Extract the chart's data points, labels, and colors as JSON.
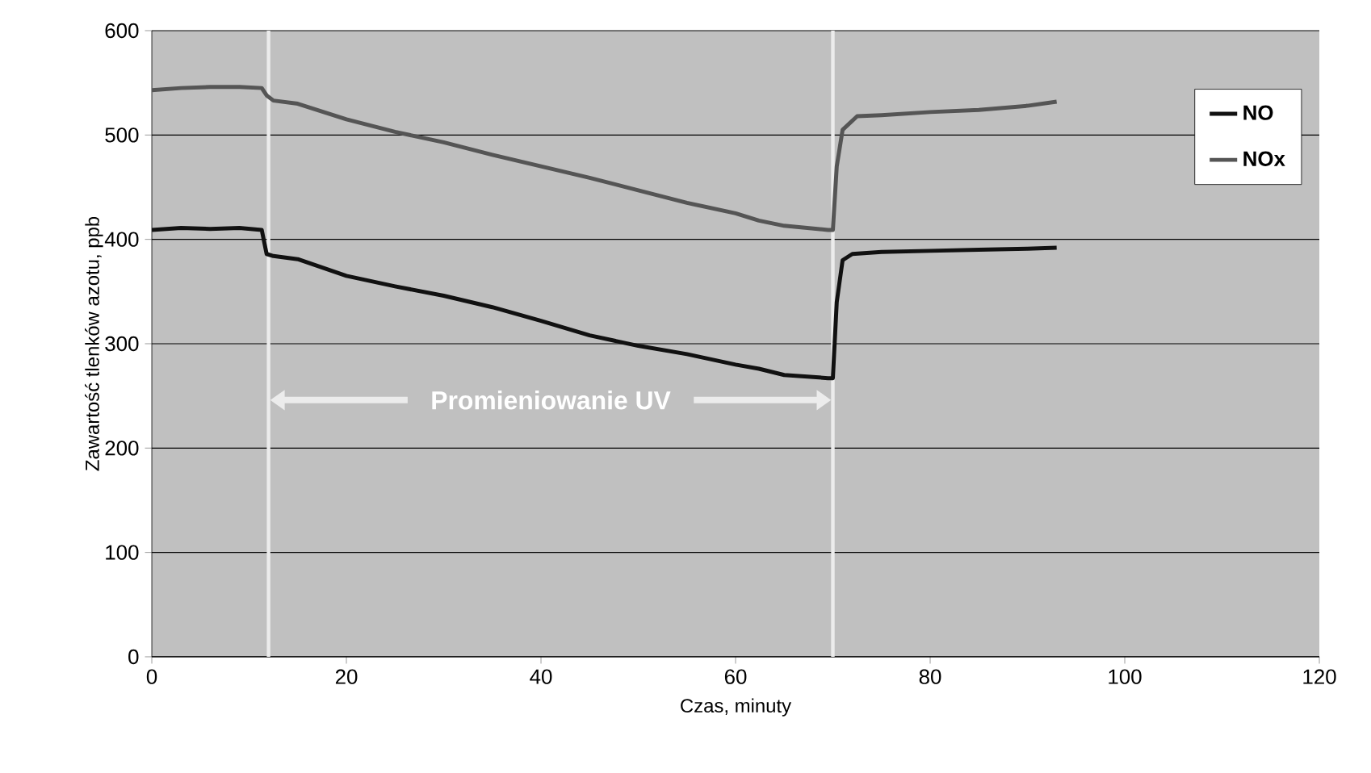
{
  "chart_data": {
    "type": "line",
    "xlabel": "Czas, minuty",
    "ylabel": "Zawartość tlenków azotu, ppb",
    "xlim": [
      0,
      120
    ],
    "ylim": [
      0,
      600
    ],
    "xticks": [
      0,
      20,
      40,
      60,
      80,
      100,
      120
    ],
    "yticks": [
      0,
      100,
      200,
      300,
      400,
      500,
      600
    ],
    "grid": "y",
    "legend": "top right",
    "marker": "none",
    "line_style": "solid",
    "series": [
      {
        "name": "NO",
        "color": "#111111",
        "x": [
          0,
          3,
          6,
          9,
          11.3,
          11.8,
          12.5,
          15,
          20,
          25,
          30,
          35,
          40,
          45,
          50,
          55,
          60,
          62.4,
          65,
          69.5,
          70,
          70.4,
          71,
          72,
          75,
          80,
          85,
          90,
          93
        ],
        "values": [
          409,
          411,
          410,
          411,
          409,
          386,
          384,
          381,
          365,
          355,
          346,
          335,
          322,
          308,
          298,
          290,
          280,
          276,
          270,
          267,
          267,
          340,
          380,
          386,
          388,
          389,
          390,
          391,
          392
        ]
      },
      {
        "name": "NOx",
        "color": "#555555",
        "x": [
          0,
          3,
          6,
          9,
          11.3,
          11.8,
          12.5,
          15,
          20,
          25,
          30,
          35,
          40,
          45,
          50,
          55,
          60,
          62.4,
          65,
          69.5,
          70,
          70.4,
          71,
          72.5,
          75,
          80,
          85,
          90,
          93
        ],
        "values": [
          543,
          545,
          546,
          546,
          545,
          538,
          533,
          530,
          515,
          503,
          493,
          481,
          470,
          459,
          447,
          435,
          425,
          418,
          413,
          409,
          409,
          470,
          505,
          518,
          519,
          522,
          524,
          528,
          532
        ]
      }
    ],
    "ref_lines": [
      {
        "axis": "x",
        "value": 12,
        "color": "#ececec"
      },
      {
        "axis": "x",
        "value": 70,
        "color": "#ececec"
      }
    ],
    "annotations": [
      "Promieniowanie UV"
    ]
  }
}
